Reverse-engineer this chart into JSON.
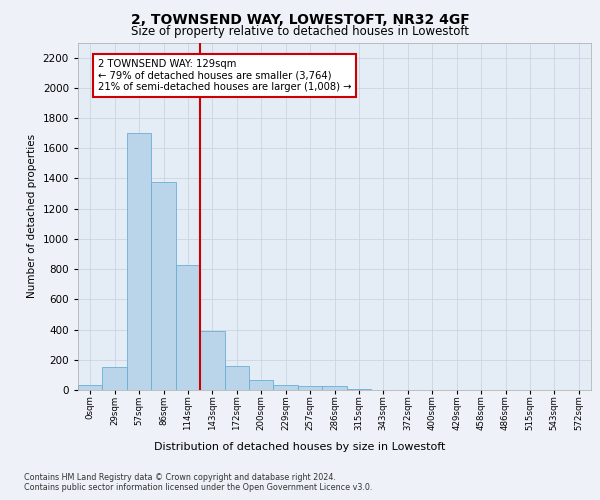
{
  "title": "2, TOWNSEND WAY, LOWESTOFT, NR32 4GF",
  "subtitle": "Size of property relative to detached houses in Lowestoft",
  "xlabel": "Distribution of detached houses by size in Lowestoft",
  "ylabel": "Number of detached properties",
  "bar_values": [
    30,
    150,
    1700,
    1380,
    830,
    390,
    160,
    65,
    30,
    25,
    25,
    5,
    2,
    1,
    1,
    0,
    0,
    0,
    0,
    0
  ],
  "bar_labels": [
    "0sqm",
    "29sqm",
    "57sqm",
    "86sqm",
    "114sqm",
    "143sqm",
    "172sqm",
    "200sqm",
    "229sqm",
    "257sqm",
    "286sqm",
    "315sqm",
    "343sqm",
    "372sqm",
    "400sqm",
    "429sqm",
    "458sqm",
    "486sqm",
    "515sqm",
    "543sqm"
  ],
  "extra_label": "572sqm",
  "bar_color": "#bad4ea",
  "bar_edge_color": "#6aaed6",
  "red_line_x": 4.5,
  "annotation_line1": "2 TOWNSEND WAY: 129sqm",
  "annotation_line2": "← 79% of detached houses are smaller (3,764)",
  "annotation_line3": "21% of semi-detached houses are larger (1,008) →",
  "annotation_box_facecolor": "#ffffff",
  "annotation_box_edgecolor": "#cc0000",
  "ylim_max": 2300,
  "yticks": [
    0,
    200,
    400,
    600,
    800,
    1000,
    1200,
    1400,
    1600,
    1800,
    2000,
    2200
  ],
  "footer_line1": "Contains HM Land Registry data © Crown copyright and database right 2024.",
  "footer_line2": "Contains public sector information licensed under the Open Government Licence v3.0.",
  "fig_facecolor": "#eef2f8",
  "plot_facecolor": "#e4ecf6",
  "grid_color": "#c8d0dc"
}
